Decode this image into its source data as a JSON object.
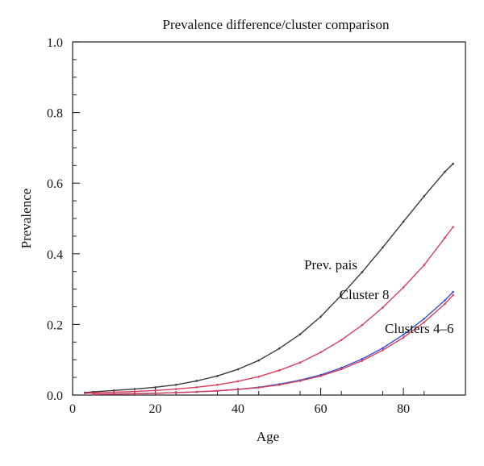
{
  "chart_data": {
    "type": "line",
    "title": "Prevalence difference/cluster comparison",
    "xlabel": "Age",
    "ylabel": "Prevalence",
    "xlim": [
      0,
      95
    ],
    "ylim": [
      0,
      1.0
    ],
    "x_ticks": [
      0,
      20,
      40,
      60,
      80
    ],
    "x_tick_labels": [
      "0",
      "20",
      "40",
      "60",
      "80"
    ],
    "y_ticks": [
      0,
      0.2,
      0.4,
      0.6,
      0.8,
      1.0
    ],
    "y_tick_labels": [
      "0.0",
      "0.2",
      "0.4",
      "0.6",
      "0.8",
      "1.0"
    ],
    "grid": false,
    "series": [
      {
        "color": "#3a3a3a",
        "x": [
          3,
          5,
          10,
          15,
          20,
          25,
          30,
          35,
          40,
          45,
          50,
          55,
          60,
          65,
          70,
          75,
          80,
          85,
          90,
          92
        ],
        "values": [
          0.007,
          0.009,
          0.013,
          0.017,
          0.022,
          0.029,
          0.04,
          0.054,
          0.073,
          0.098,
          0.132,
          0.172,
          0.222,
          0.283,
          0.348,
          0.418,
          0.491,
          0.563,
          0.632,
          0.655
        ]
      },
      {
        "color": "#d6405a",
        "x": [
          3,
          5,
          10,
          15,
          20,
          25,
          30,
          35,
          40,
          45,
          50,
          55,
          60,
          65,
          70,
          75,
          80,
          85,
          90,
          92
        ],
        "values": [
          0.005,
          0.006,
          0.008,
          0.01,
          0.013,
          0.017,
          0.022,
          0.029,
          0.039,
          0.052,
          0.07,
          0.092,
          0.121,
          0.156,
          0.198,
          0.248,
          0.305,
          0.368,
          0.445,
          0.476
        ]
      },
      {
        "color": "#3a4fd0",
        "x": [
          5,
          10,
          15,
          20,
          25,
          30,
          35,
          40,
          45,
          50,
          55,
          60,
          65,
          70,
          75,
          80,
          85,
          90,
          92
        ],
        "values": [
          0.002,
          0.003,
          0.004,
          0.005,
          0.007,
          0.009,
          0.012,
          0.016,
          0.022,
          0.031,
          0.042,
          0.057,
          0.077,
          0.102,
          0.133,
          0.171,
          0.216,
          0.268,
          0.292
        ]
      },
      {
        "color": "#d6405a",
        "x": [
          5,
          10,
          15,
          20,
          25,
          30,
          35,
          40,
          45,
          50,
          55,
          60,
          65,
          70,
          75,
          80,
          85,
          90,
          92
        ],
        "values": [
          0.002,
          0.003,
          0.004,
          0.005,
          0.007,
          0.009,
          0.012,
          0.016,
          0.021,
          0.029,
          0.04,
          0.054,
          0.073,
          0.097,
          0.127,
          0.163,
          0.206,
          0.258,
          0.283
        ]
      }
    ],
    "annotations": [
      {
        "text": "Prev. pais",
        "x": 56,
        "y": 0.37
      },
      {
        "text": "Cluster 8",
        "x": 64.5,
        "y": 0.285
      },
      {
        "text": "Clusters 4–6",
        "x": 75.5,
        "y": 0.19
      }
    ]
  }
}
